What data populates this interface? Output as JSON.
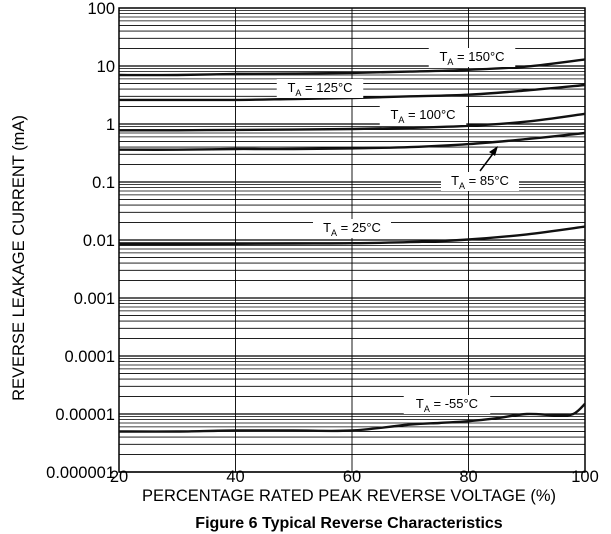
{
  "chart_data": {
    "type": "line",
    "caption": "Figure 6 Typical Reverse Characteristics",
    "xlabel": "PERCENTAGE RATED PEAK REVERSE VOLTAGE (%)",
    "ylabel": "REVERSE LEAKAGE CURRENT (mA)",
    "xlim": [
      20,
      100
    ],
    "ylim": [
      1e-06,
      100
    ],
    "yscale": "log",
    "grid": true,
    "x_ticks": [
      "20",
      "40",
      "60",
      "80",
      "100"
    ],
    "y_ticks": [
      "100",
      "10",
      "1",
      "0.1",
      "0.01",
      "0.001",
      "0.0001",
      "0.00001",
      "0.000001"
    ],
    "series": [
      {
        "name_main": "T",
        "name_sub": "A",
        "name_rest": " = 150°C",
        "x": [
          20,
          30,
          40,
          50,
          60,
          70,
          80,
          90,
          100
        ],
        "y": [
          7,
          7,
          7.3,
          7.4,
          7.6,
          8,
          8.6,
          9.8,
          13
        ]
      },
      {
        "name_main": "T",
        "name_sub": "A",
        "name_rest": " = 125°C",
        "x": [
          20,
          30,
          40,
          50,
          60,
          70,
          80,
          90,
          100
        ],
        "y": [
          2.6,
          2.6,
          2.6,
          2.7,
          2.8,
          3,
          3.2,
          3.8,
          4.7
        ]
      },
      {
        "name_main": "T",
        "name_sub": "A",
        "name_rest": " = 100°C",
        "x": [
          20,
          30,
          40,
          50,
          60,
          70,
          80,
          90,
          100
        ],
        "y": [
          0.78,
          0.78,
          0.79,
          0.8,
          0.82,
          0.86,
          0.93,
          1.1,
          1.5
        ]
      },
      {
        "name_main": "T",
        "name_sub": "A",
        "name_rest": " = 85°C",
        "x": [
          20,
          30,
          40,
          50,
          60,
          70,
          80,
          90,
          100
        ],
        "y": [
          0.36,
          0.36,
          0.37,
          0.37,
          0.38,
          0.4,
          0.45,
          0.55,
          0.7
        ]
      },
      {
        "name_main": "T",
        "name_sub": "A",
        "name_rest": " = 25°C",
        "x": [
          20,
          30,
          40,
          50,
          60,
          70,
          80,
          90,
          100
        ],
        "y": [
          0.0085,
          0.0085,
          0.0086,
          0.0087,
          0.0088,
          0.0092,
          0.0102,
          0.0125,
          0.017
        ]
      },
      {
        "name_main": "T",
        "name_sub": "A",
        "name_rest": " = -55°C",
        "x": [
          20,
          30,
          40,
          50,
          60,
          70,
          75,
          80,
          85,
          90,
          95,
          98,
          100
        ],
        "y": [
          5e-06,
          5e-06,
          5.2e-06,
          5.2e-06,
          5.2e-06,
          6.6e-06,
          7e-06,
          7.5e-06,
          8.5e-06,
          1e-05,
          9.5e-06,
          1e-05,
          1.5e-05
        ]
      }
    ]
  }
}
